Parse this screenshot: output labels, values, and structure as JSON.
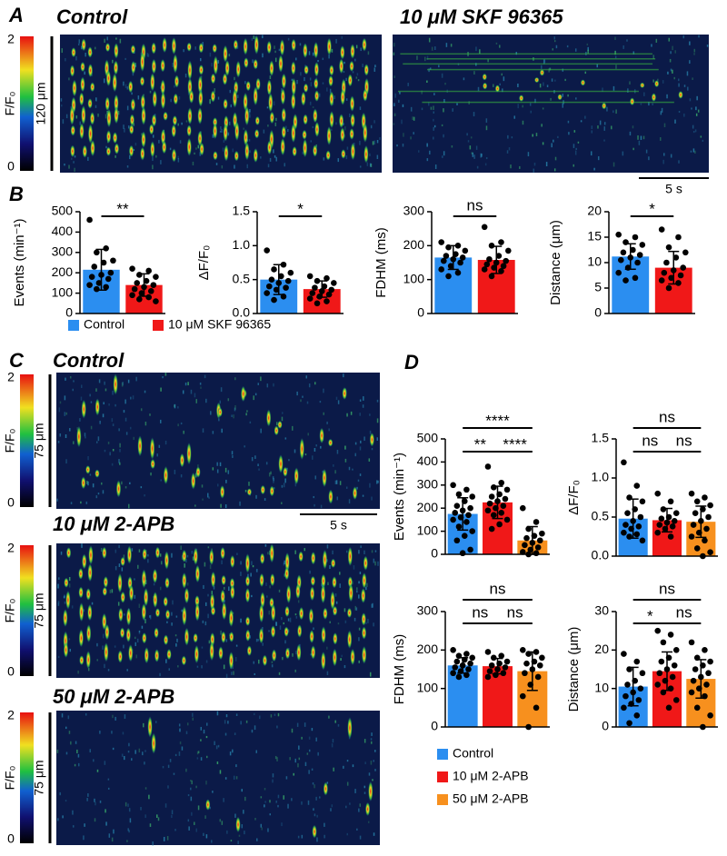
{
  "panel_labels": [
    "A",
    "B",
    "C",
    "D"
  ],
  "images": [
    {
      "title": "Control",
      "colorbar_lim": [
        0,
        2
      ],
      "colorbar_label": "F/F₀",
      "scale_label": "120 μm"
    },
    {
      "title": "10 μM SKF 96365",
      "time_scale": "5 s"
    },
    {
      "title": "Control",
      "colorbar_lim": [
        0,
        2
      ],
      "colorbar_label": "F/F₀",
      "scale_label": "75 μm",
      "time_scale": "5 s"
    },
    {
      "title": "10 μM 2-APB",
      "colorbar_lim": [
        0,
        2
      ],
      "colorbar_label": "F/F₀",
      "scale_label": "75 μm"
    },
    {
      "title": "50 μM 2-APB",
      "colorbar_lim": [
        0,
        2
      ],
      "colorbar_label": "F/F₀",
      "scale_label": "75 μm"
    }
  ],
  "chart_data": [
    {
      "type": "bar",
      "ylabel": "Events (min⁻¹)",
      "ylim": [
        0,
        500
      ],
      "yticks": [
        0,
        100,
        200,
        300,
        400,
        500
      ],
      "series": [
        {
          "name": "Control",
          "color": "#2b8ef0",
          "values": [
            215
          ],
          "error": [
            100
          ],
          "points": [
            460,
            320,
            300,
            260,
            250,
            230,
            200,
            190,
            180,
            170,
            150,
            140,
            130,
            120
          ]
        },
        {
          "name": "10 μM SKF 96365",
          "color": "#f01818",
          "values": [
            140
          ],
          "error": [
            55
          ],
          "points": [
            220,
            210,
            190,
            180,
            160,
            150,
            140,
            130,
            120,
            110,
            100,
            90,
            80,
            70,
            60
          ]
        }
      ],
      "annotations": [
        {
          "text": "**",
          "between": [
            0,
            1
          ]
        }
      ]
    },
    {
      "type": "bar",
      "ylabel": "ΔF/F₀",
      "ylim": [
        0,
        1.5
      ],
      "yticks": [
        {
          "value": 0,
          "label": "0.0"
        },
        0.5,
        {
          "value": 1,
          "label": "1.0"
        },
        1.5
      ],
      "series": [
        {
          "name": "Control",
          "color": "#2b8ef0",
          "values": [
            0.5
          ],
          "error": [
            0.22
          ],
          "points": [
            0.93,
            0.72,
            0.65,
            0.6,
            0.55,
            0.5,
            0.48,
            0.45,
            0.4,
            0.38,
            0.35,
            0.3,
            0.25,
            0.2
          ]
        },
        {
          "name": "10 μM SKF 96365",
          "color": "#f01818",
          "values": [
            0.36
          ],
          "error": [
            0.12
          ],
          "points": [
            0.55,
            0.52,
            0.48,
            0.45,
            0.4,
            0.38,
            0.35,
            0.33,
            0.3,
            0.28,
            0.25,
            0.22,
            0.18,
            0.15
          ]
        }
      ],
      "annotations": [
        {
          "text": "*",
          "between": [
            0,
            1
          ]
        }
      ]
    },
    {
      "type": "bar",
      "ylabel": "FDHM (ms)",
      "ylim": [
        0,
        300
      ],
      "yticks": [
        0,
        100,
        200,
        300
      ],
      "series": [
        {
          "name": "Control",
          "color": "#2b8ef0",
          "values": [
            165
          ],
          "error": [
            35
          ],
          "points": [
            210,
            200,
            195,
            185,
            175,
            170,
            165,
            160,
            155,
            150,
            140,
            130,
            120,
            110
          ]
        },
        {
          "name": "10 μM SKF 96365",
          "color": "#f01818",
          "values": [
            158
          ],
          "error": [
            40
          ],
          "points": [
            255,
            210,
            200,
            185,
            170,
            160,
            155,
            150,
            145,
            140,
            135,
            130,
            125,
            110
          ]
        }
      ],
      "annotations": [
        {
          "text": "ns",
          "between": [
            0,
            1
          ]
        }
      ]
    },
    {
      "type": "bar",
      "ylabel": "Distance (μm)",
      "ylim": [
        0,
        20
      ],
      "yticks": [
        0,
        5,
        10,
        15,
        20
      ],
      "series": [
        {
          "name": "Control",
          "color": "#2b8ef0",
          "values": [
            11.2
          ],
          "error": [
            2.5
          ],
          "points": [
            15.5,
            15,
            14,
            13.5,
            12.5,
            12,
            11.5,
            11,
            10.5,
            10,
            9,
            8,
            7,
            6.5
          ]
        },
        {
          "name": "10 μM SKF 96365",
          "color": "#f01818",
          "values": [
            9
          ],
          "error": [
            3.2
          ],
          "points": [
            16.5,
            15,
            13,
            12,
            11,
            10,
            9,
            8.5,
            8,
            7.5,
            7,
            6.5,
            6,
            5
          ]
        }
      ],
      "annotations": [
        {
          "text": "*",
          "between": [
            0,
            1
          ]
        }
      ]
    },
    {
      "type": "bar",
      "ylabel": "Events (min⁻¹)",
      "ylim": [
        0,
        500
      ],
      "yticks": [
        0,
        100,
        200,
        300,
        400,
        500
      ],
      "series": [
        {
          "name": "Control",
          "color": "#2b8ef0",
          "values": [
            175
          ],
          "error": [
            70
          ],
          "points": [
            300,
            280,
            260,
            250,
            230,
            210,
            200,
            190,
            180,
            170,
            160,
            150,
            140,
            120,
            100,
            80,
            60,
            20,
            5
          ]
        },
        {
          "name": "10 μM 2-APB",
          "color": "#f01818",
          "values": [
            225
          ],
          "error": [
            70
          ],
          "points": [
            380,
            310,
            290,
            280,
            260,
            250,
            240,
            230,
            220,
            210,
            200,
            190,
            180,
            170,
            150,
            130,
            110
          ]
        },
        {
          "name": "50 μM 2-APB",
          "color": "#f7901e",
          "values": [
            60
          ],
          "error": [
            60
          ],
          "points": [
            200,
            140,
            110,
            90,
            80,
            70,
            60,
            50,
            40,
            30,
            20,
            10,
            5,
            0
          ]
        }
      ],
      "annotations": [
        {
          "text": "****",
          "between": [
            0,
            2
          ]
        },
        {
          "text": "**",
          "between": [
            0,
            1
          ]
        },
        {
          "text": "****",
          "between": [
            1,
            2
          ]
        }
      ]
    },
    {
      "type": "bar",
      "ylabel": "ΔF/F₀",
      "ylim": [
        0,
        1.5
      ],
      "yticks": [
        {
          "value": 0,
          "label": "0.0"
        },
        0.5,
        {
          "value": 1,
          "label": "1.0"
        },
        1.5
      ],
      "series": [
        {
          "name": "Control",
          "color": "#2b8ef0",
          "values": [
            0.48
          ],
          "error": [
            0.25
          ],
          "points": [
            1.2,
            0.9,
            0.75,
            0.7,
            0.6,
            0.55,
            0.5,
            0.45,
            0.4,
            0.38,
            0.35,
            0.3,
            0.28,
            0.25,
            0.2
          ]
        },
        {
          "name": "10 μM 2-APB",
          "color": "#f01818",
          "values": [
            0.46
          ],
          "error": [
            0.15
          ],
          "points": [
            0.8,
            0.7,
            0.6,
            0.55,
            0.5,
            0.48,
            0.45,
            0.43,
            0.4,
            0.38,
            0.35,
            0.3,
            0.25
          ]
        },
        {
          "name": "50 μM 2-APB",
          "color": "#f7901e",
          "values": [
            0.44
          ],
          "error": [
            0.2
          ],
          "points": [
            0.8,
            0.75,
            0.7,
            0.65,
            0.6,
            0.55,
            0.5,
            0.45,
            0.4,
            0.35,
            0.3,
            0.25,
            0.2,
            0.1,
            0.05,
            0
          ]
        }
      ],
      "annotations": [
        {
          "text": "ns",
          "between": [
            0,
            2
          ]
        },
        {
          "text": "ns",
          "between": [
            0,
            1
          ]
        },
        {
          "text": "ns",
          "between": [
            1,
            2
          ]
        }
      ]
    },
    {
      "type": "bar",
      "ylabel": "FDHM (ms)",
      "ylim": [
        0,
        300
      ],
      "yticks": [
        0,
        100,
        200,
        300
      ],
      "series": [
        {
          "name": "Control",
          "color": "#2b8ef0",
          "values": [
            160
          ],
          "error": [
            20
          ],
          "points": [
            200,
            190,
            185,
            180,
            175,
            170,
            165,
            160,
            155,
            150,
            145,
            140,
            135,
            130
          ]
        },
        {
          "name": "10 μM 2-APB",
          "color": "#f01818",
          "values": [
            158
          ],
          "error": [
            20
          ],
          "points": [
            195,
            185,
            180,
            170,
            165,
            160,
            155,
            150,
            145,
            140,
            135,
            130
          ]
        },
        {
          "name": "50 μM 2-APB",
          "color": "#f7901e",
          "values": [
            145
          ],
          "error": [
            50
          ],
          "points": [
            200,
            195,
            190,
            180,
            170,
            165,
            160,
            150,
            140,
            130,
            110,
            80,
            50,
            0
          ]
        }
      ],
      "annotations": [
        {
          "text": "ns",
          "between": [
            0,
            2
          ]
        },
        {
          "text": "ns",
          "between": [
            0,
            1
          ]
        },
        {
          "text": "ns",
          "between": [
            1,
            2
          ]
        }
      ]
    },
    {
      "type": "bar",
      "ylabel": "Distance (μm)",
      "ylim": [
        0,
        30
      ],
      "yticks": [
        0,
        10,
        20,
        30
      ],
      "series": [
        {
          "name": "Control",
          "color": "#2b8ef0",
          "values": [
            10.5
          ],
          "error": [
            5
          ],
          "points": [
            19,
            17,
            15,
            14,
            12,
            11,
            10,
            9,
            8,
            7,
            6,
            5,
            3,
            1
          ]
        },
        {
          "name": "10 μM 2-APB",
          "color": "#f01818",
          "values": [
            14.5
          ],
          "error": [
            5
          ],
          "points": [
            25,
            24,
            22,
            20,
            18,
            17,
            16,
            15,
            14,
            13,
            12,
            11,
            10,
            9,
            7,
            5
          ]
        },
        {
          "name": "50 μM 2-APB",
          "color": "#f7901e",
          "values": [
            12.5
          ],
          "error": [
            5
          ],
          "points": [
            22,
            20,
            18,
            17,
            16,
            15,
            14,
            13,
            12,
            11,
            10,
            9,
            8,
            5,
            3,
            0
          ]
        }
      ],
      "annotations": [
        {
          "text": "ns",
          "between": [
            0,
            2
          ]
        },
        {
          "text": "*",
          "between": [
            0,
            1
          ]
        },
        {
          "text": "ns",
          "between": [
            1,
            2
          ]
        }
      ]
    }
  ]
}
